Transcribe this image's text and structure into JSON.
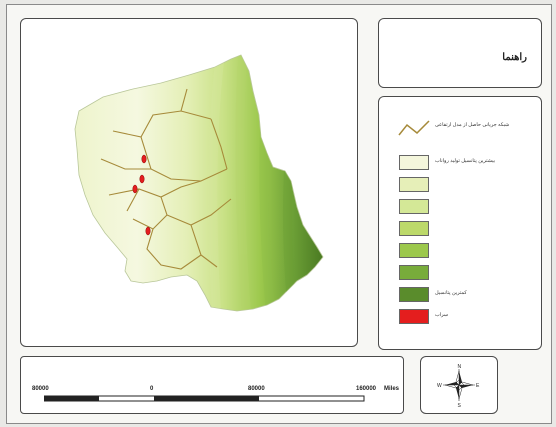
{
  "map": {
    "title": "راهنما",
    "legend": [
      {
        "kind": "line",
        "label": "شبکه جریانی حاصل از مدل ارتفاعی",
        "color": "#a68a3a"
      },
      {
        "kind": "swatch",
        "label": "بیشترین پتانسیل تولید رواناب",
        "color": "#f4f6dc"
      },
      {
        "kind": "swatch",
        "label": "",
        "color": "#e6efb8"
      },
      {
        "kind": "swatch",
        "label": "",
        "color": "#d4e897"
      },
      {
        "kind": "swatch",
        "label": "",
        "color": "#bcd96a"
      },
      {
        "kind": "swatch",
        "label": "",
        "color": "#9cc84c"
      },
      {
        "kind": "swatch",
        "label": "",
        "color": "#78ac3b"
      },
      {
        "kind": "swatch",
        "label": "کمترین پتانسیل",
        "color": "#5a8c2c"
      },
      {
        "kind": "swatch",
        "label": "سراب",
        "color": "#e41e1e"
      }
    ],
    "scale_bar": {
      "ticks": [
        "80000",
        "0",
        "80000",
        "160000"
      ],
      "unit": "Miles"
    },
    "north_arrow": {
      "icon": "north-arrow-icon",
      "letters": [
        "N",
        "E",
        "S",
        "W"
      ]
    },
    "colors": {
      "lightest": "#f4f6dc",
      "darkest": "#4a7a22",
      "streams": "#a68a3a",
      "springs": "#e41e1e"
    }
  }
}
